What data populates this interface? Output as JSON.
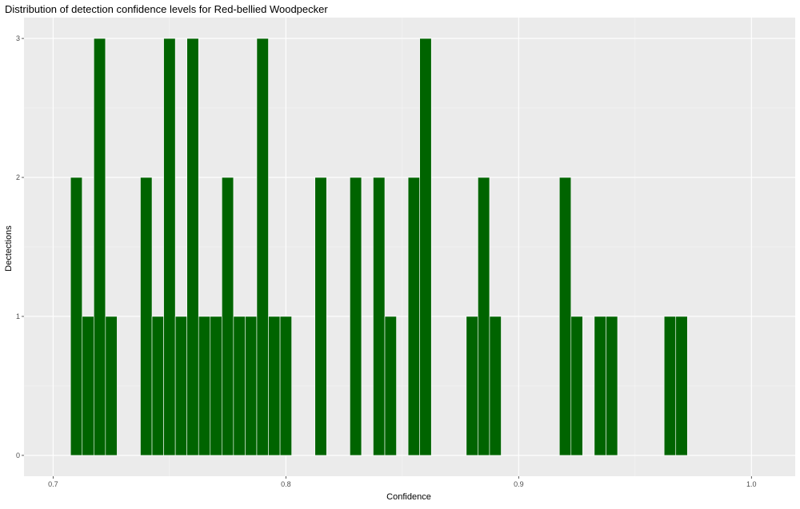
{
  "chart_data": {
    "type": "bar",
    "title": "Distribution of detection confidence levels for Red-bellied Woodpecker",
    "xlabel": "Confidence",
    "ylabel": "Dectections",
    "x_ticks": [
      "0.7",
      "0.8",
      "0.9",
      "1.0"
    ],
    "y_ticks": [
      "0",
      "1",
      "2",
      "3"
    ],
    "xlim": [
      0.6875,
      1.0188
    ],
    "ylim": [
      -0.15,
      3.15
    ],
    "bin_width": 0.005,
    "bar_color": "#006400",
    "panel_background": "#ebebeb",
    "grid": true,
    "bins": [
      {
        "x": 0.71,
        "count": 2
      },
      {
        "x": 0.715,
        "count": 1
      },
      {
        "x": 0.72,
        "count": 3
      },
      {
        "x": 0.725,
        "count": 1
      },
      {
        "x": 0.74,
        "count": 2
      },
      {
        "x": 0.745,
        "count": 1
      },
      {
        "x": 0.75,
        "count": 3
      },
      {
        "x": 0.755,
        "count": 1
      },
      {
        "x": 0.76,
        "count": 3
      },
      {
        "x": 0.765,
        "count": 1
      },
      {
        "x": 0.77,
        "count": 1
      },
      {
        "x": 0.775,
        "count": 2
      },
      {
        "x": 0.78,
        "count": 1
      },
      {
        "x": 0.785,
        "count": 1
      },
      {
        "x": 0.79,
        "count": 3
      },
      {
        "x": 0.795,
        "count": 1
      },
      {
        "x": 0.8,
        "count": 1
      },
      {
        "x": 0.815,
        "count": 2
      },
      {
        "x": 0.83,
        "count": 2
      },
      {
        "x": 0.84,
        "count": 2
      },
      {
        "x": 0.845,
        "count": 1
      },
      {
        "x": 0.855,
        "count": 2
      },
      {
        "x": 0.86,
        "count": 3
      },
      {
        "x": 0.88,
        "count": 1
      },
      {
        "x": 0.885,
        "count": 2
      },
      {
        "x": 0.89,
        "count": 1
      },
      {
        "x": 0.92,
        "count": 2
      },
      {
        "x": 0.925,
        "count": 1
      },
      {
        "x": 0.935,
        "count": 1
      },
      {
        "x": 0.94,
        "count": 1
      },
      {
        "x": 0.965,
        "count": 1
      },
      {
        "x": 0.97,
        "count": 1
      }
    ]
  }
}
